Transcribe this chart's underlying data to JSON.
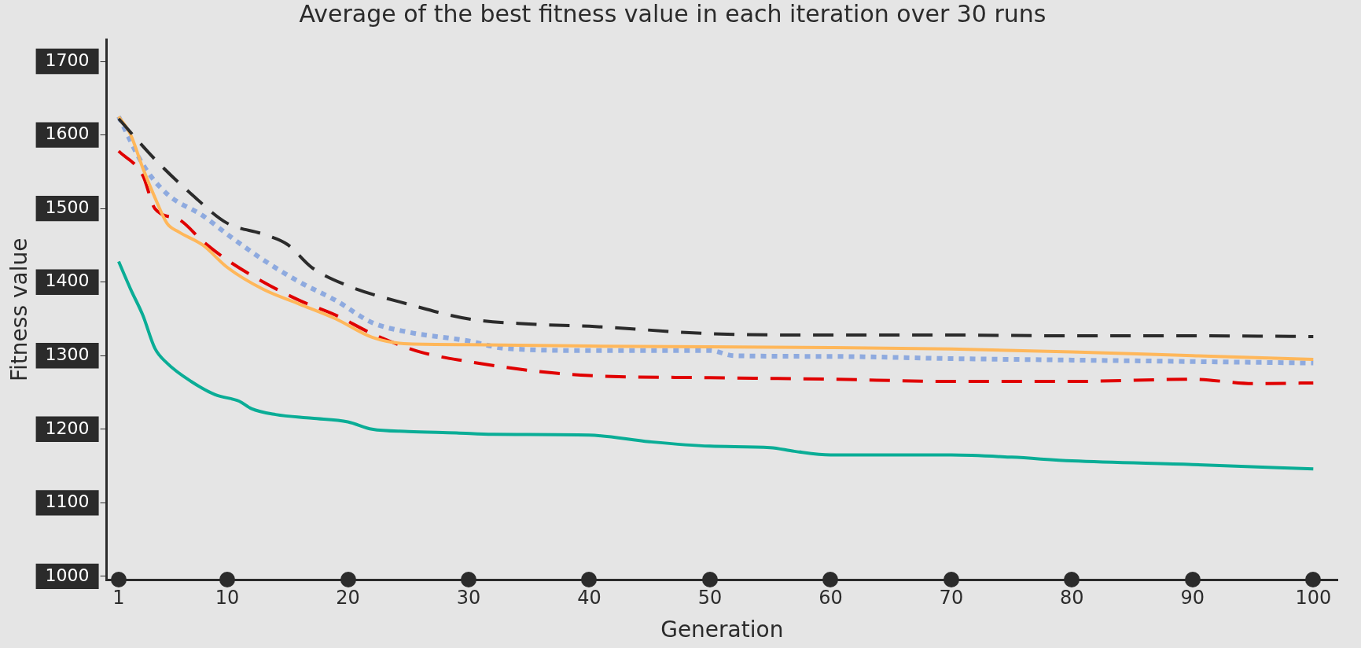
{
  "chart_data": {
    "type": "line",
    "title": "Average of the best fitness value in each iteration over 30 runs",
    "xlabel": "Generation",
    "ylabel": "Fitness value",
    "xlim": [
      0,
      102
    ],
    "xticks": [
      1,
      10,
      20,
      30,
      40,
      50,
      60,
      70,
      80,
      90,
      100
    ],
    "ylim": [
      995,
      1730
    ],
    "yticks": [
      1000,
      1100,
      1200,
      1300,
      1400,
      1500,
      1600,
      1700
    ],
    "grid": false,
    "legend": false,
    "marker": "none",
    "series": [
      {
        "color": "#2b2b2b",
        "line_style": "dashed",
        "x": [
          1,
          4,
          7,
          10,
          13,
          15,
          17,
          20,
          25,
          30,
          35,
          40,
          50,
          60,
          70,
          80,
          90,
          100
        ],
        "values": [
          1622,
          1567,
          1520,
          1480,
          1465,
          1451,
          1420,
          1395,
          1370,
          1350,
          1343,
          1340,
          1330,
          1328,
          1328,
          1327,
          1327,
          1326
        ]
      },
      {
        "color": "#ffb75a",
        "line_style": "solid",
        "x": [
          1,
          2,
          3,
          4,
          5,
          6,
          8,
          10,
          13,
          16,
          19,
          22,
          25,
          30,
          40,
          50,
          60,
          70,
          80,
          90,
          100
        ],
        "values": [
          1625,
          1600,
          1555,
          1515,
          1480,
          1468,
          1450,
          1420,
          1390,
          1370,
          1350,
          1325,
          1316,
          1315,
          1313,
          1312,
          1311,
          1309,
          1305,
          1300,
          1295
        ]
      },
      {
        "color": "#8eaadf",
        "line_style": "dotted",
        "x": [
          1,
          3,
          5,
          8,
          10,
          13,
          16,
          19,
          22,
          25,
          30,
          33,
          40,
          50,
          52,
          60,
          70,
          80,
          90,
          100
        ],
        "values": [
          1625,
          1560,
          1520,
          1490,
          1465,
          1430,
          1400,
          1375,
          1345,
          1332,
          1320,
          1310,
          1307,
          1307,
          1300,
          1299,
          1296,
          1294,
          1292,
          1290
        ]
      },
      {
        "color": "#e00000",
        "line_style": "dashed",
        "x": [
          1,
          3,
          4,
          6,
          8,
          10,
          13,
          16,
          19,
          22,
          26,
          30,
          35,
          40,
          50,
          60,
          70,
          80,
          90,
          95,
          100
        ],
        "values": [
          1578,
          1545,
          1500,
          1485,
          1455,
          1430,
          1400,
          1375,
          1355,
          1330,
          1305,
          1292,
          1280,
          1273,
          1270,
          1268,
          1265,
          1265,
          1268,
          1262,
          1263
        ]
      },
      {
        "color": "#0aad96",
        "line_style": "solid",
        "x": [
          1,
          2,
          3,
          4,
          5,
          7,
          9,
          11,
          12,
          14,
          17,
          20,
          22,
          25,
          29,
          32,
          40,
          45,
          50,
          55,
          57,
          60,
          70,
          75,
          80,
          90,
          100
        ],
        "values": [
          1428,
          1390,
          1355,
          1310,
          1290,
          1265,
          1247,
          1238,
          1228,
          1220,
          1215,
          1210,
          1200,
          1197,
          1195,
          1193,
          1192,
          1183,
          1177,
          1175,
          1170,
          1165,
          1165,
          1162,
          1157,
          1152,
          1146
        ]
      }
    ]
  }
}
